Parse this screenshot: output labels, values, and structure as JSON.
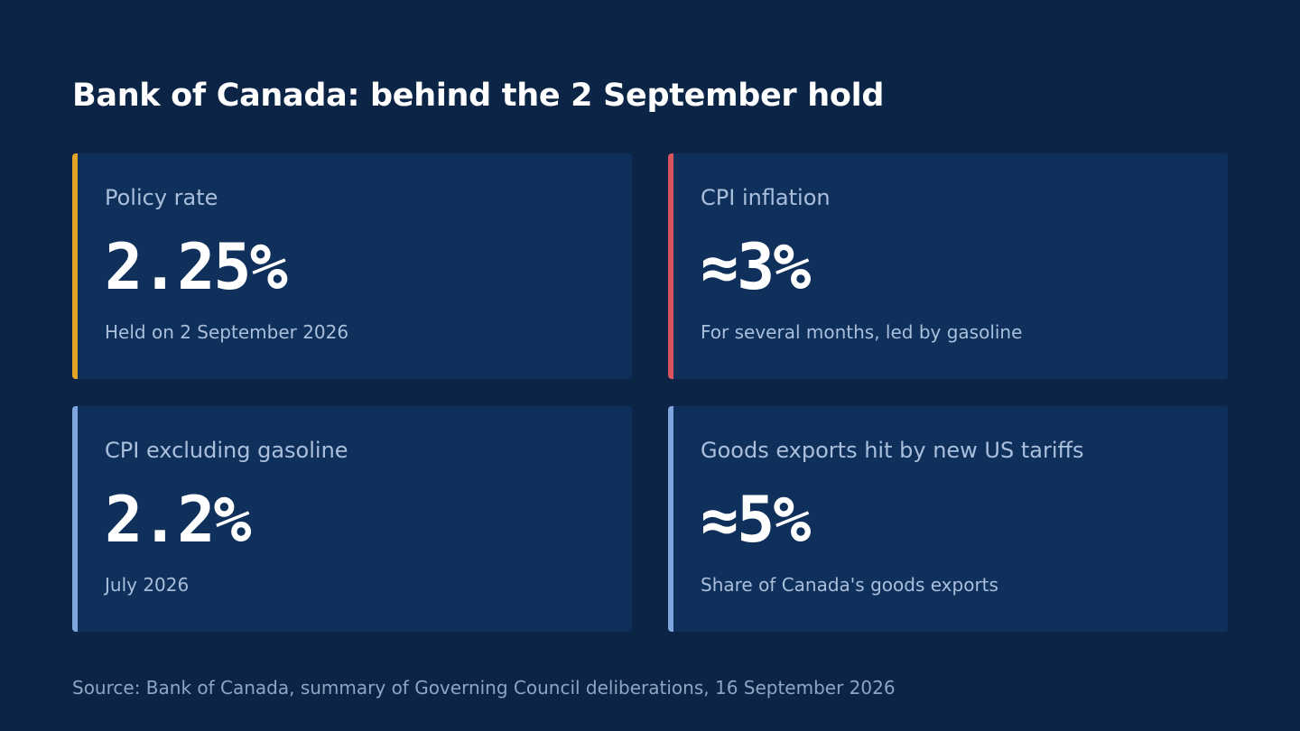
{
  "title": "Bank of Canada: behind the 2 September hold",
  "cards": [
    {
      "label": "Policy rate",
      "value": "2.25%",
      "note": "Held on 2 September 2026",
      "accent_color": "#e0a526"
    },
    {
      "label": "CPI inflation",
      "value": "≈3%",
      "note": "For several months, led by gasoline",
      "accent_color": "#d9545c"
    },
    {
      "label": "CPI excluding gasoline",
      "value": "2.2%",
      "note": "July 2026",
      "accent_color": "#7fa6dd"
    },
    {
      "label": "Goods exports hit by new US tariffs",
      "value": "≈5%",
      "note": "Share of Canada's goods exports",
      "accent_color": "#7fa6dd"
    }
  ],
  "source": "Source: Bank of Canada, summary of Governing Council deliberations, 16 September 2026",
  "colors": {
    "background": "#0c2546",
    "card_background": "#10305c",
    "title_text": "#ffffff",
    "label_text": "#a9bfdb",
    "source_text": "#8ea5c4"
  }
}
